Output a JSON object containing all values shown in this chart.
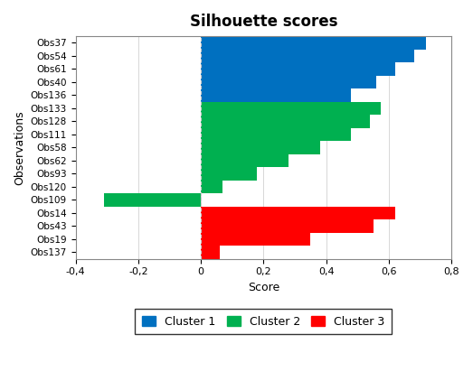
{
  "title": "Silhouette scores",
  "xlabel": "Score",
  "ylabel": "Observations",
  "xlim": [
    -0.4,
    0.8
  ],
  "xticks": [
    -0.4,
    -0.2,
    0.0,
    0.2,
    0.4,
    0.6,
    0.8
  ],
  "xtick_labels": [
    "-0,4",
    "-0,2",
    "0",
    "0,2",
    "0,4",
    "0,6",
    "0,8"
  ],
  "clusters": [
    {
      "name": "Cluster 1",
      "color": "#0070C0",
      "observations": [
        "Obs37",
        "Obs54",
        "Obs61",
        "Obs40",
        "Obs136"
      ],
      "scores": [
        0.72,
        0.68,
        0.62,
        0.56,
        0.48
      ]
    },
    {
      "name": "Cluster 2",
      "color": "#00B050",
      "observations": [
        "Obs133",
        "Obs128",
        "Obs111",
        "Obs58",
        "Obs62",
        "Obs93",
        "Obs120",
        "Obs109"
      ],
      "scores": [
        0.575,
        0.54,
        0.48,
        0.38,
        0.28,
        0.18,
        0.07,
        -0.31
      ]
    },
    {
      "name": "Cluster 3",
      "color": "#FF0000",
      "observations": [
        "Obs14",
        "Obs43",
        "Obs19",
        "Obs137"
      ],
      "scores": [
        0.62,
        0.55,
        0.35,
        0.06
      ]
    }
  ],
  "background_color": "#FFFFFF",
  "plot_bg_color": "#FFFFFF",
  "grid_color": "#C8C8C8",
  "title_fontsize": 12,
  "axis_fontsize": 9,
  "tick_fontsize": 8,
  "label_fontsize": 7.5
}
